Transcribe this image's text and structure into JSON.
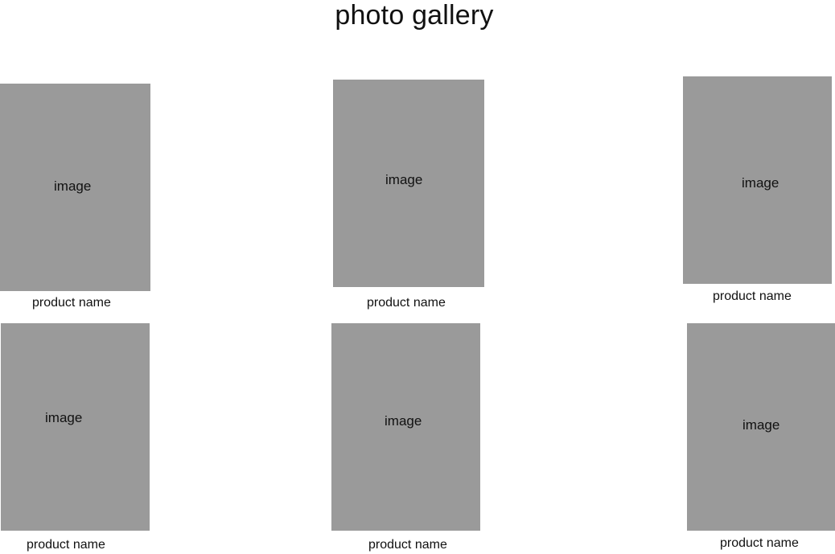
{
  "page": {
    "title": "photo gallery"
  },
  "colors": {
    "background": "#ffffff",
    "image_placeholder": "#9a9a9a",
    "text": "#111111"
  },
  "gallery": {
    "items": [
      {
        "image_label": "image",
        "product_name": "product name"
      },
      {
        "image_label": "image",
        "product_name": "product name"
      },
      {
        "image_label": "image",
        "product_name": "product name"
      },
      {
        "image_label": "image",
        "product_name": "product name"
      },
      {
        "image_label": "image",
        "product_name": "product name"
      },
      {
        "image_label": "image",
        "product_name": "product name"
      }
    ]
  }
}
